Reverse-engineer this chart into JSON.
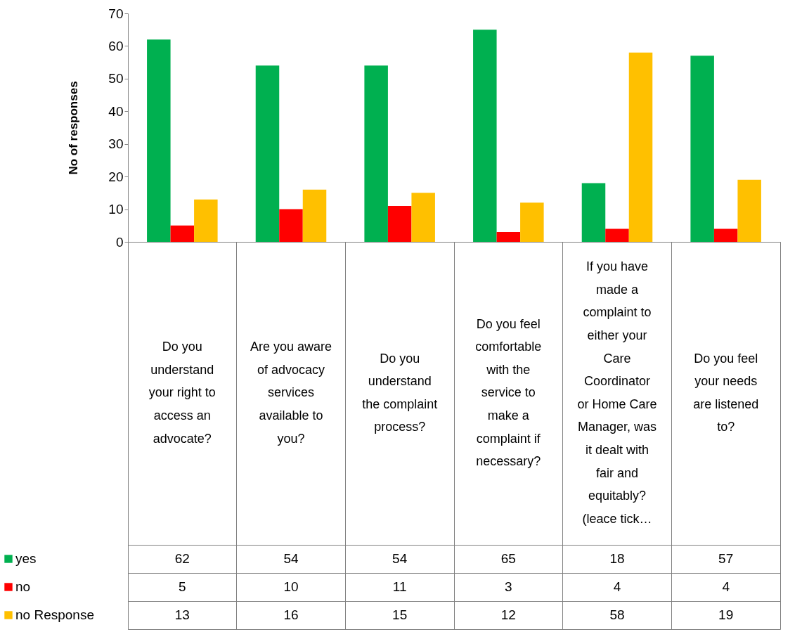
{
  "chart_data": {
    "type": "bar",
    "ylabel": "No of responses",
    "categories": [
      "Do you understand your right to access an advocate?",
      "Are you aware of advocacy services available to you?",
      "Do you understand the complaint process?",
      "Do you feel comfortable with the service to make a complaint if necessary?",
      "If you have made a complaint to either your Care Coordinator or Home Care Manager, was it dealt with fair and equitably? (leace tick…",
      "Do you feel your needs are listened to?"
    ],
    "series": [
      {
        "name": "yes",
        "color": "#00b050",
        "values": [
          62,
          54,
          54,
          65,
          18,
          57
        ]
      },
      {
        "name": "no",
        "color": "#ff0000",
        "values": [
          5,
          10,
          11,
          3,
          4,
          4
        ]
      },
      {
        "name": "no Response",
        "color": "#ffc000",
        "values": [
          13,
          16,
          15,
          12,
          58,
          19
        ]
      }
    ],
    "ylim": [
      0,
      70
    ],
    "yticks": [
      0,
      10,
      20,
      30,
      40,
      50,
      60,
      70
    ],
    "data_labels": true,
    "legend": "bottom left"
  }
}
